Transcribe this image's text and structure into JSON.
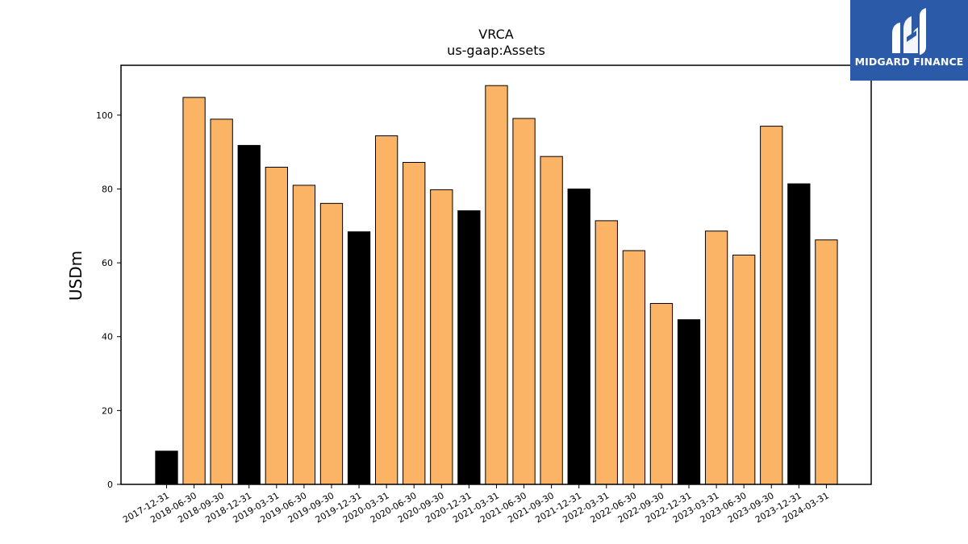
{
  "brand": {
    "name": "MIDGARD FINANCE",
    "icon": "midgard-logo-mark",
    "background": "#2b5ba8"
  },
  "chart_data": {
    "type": "bar",
    "title": "VRCA",
    "subtitle": "us-gaap:Assets",
    "xlabel": "",
    "ylabel": "USDm",
    "ylim": [
      0,
      113.5
    ],
    "yticks": [
      0,
      20,
      40,
      60,
      80,
      100
    ],
    "grid": false,
    "categories": [
      "2017-12-31",
      "2018-06-30",
      "2018-09-30",
      "2018-12-31",
      "2019-03-31",
      "2019-06-30",
      "2019-09-30",
      "2019-12-31",
      "2020-03-31",
      "2020-06-30",
      "2020-09-30",
      "2020-12-31",
      "2021-03-31",
      "2021-06-30",
      "2021-09-30",
      "2021-12-31",
      "2022-03-31",
      "2022-06-30",
      "2022-09-30",
      "2022-12-31",
      "2023-03-31",
      "2023-06-30",
      "2023-09-30",
      "2023-12-31",
      "2024-03-31"
    ],
    "values": [
      9.0,
      104.8,
      98.9,
      91.8,
      85.9,
      81.0,
      76.1,
      68.4,
      94.4,
      87.2,
      79.8,
      74.1,
      108.0,
      99.1,
      88.8,
      80.0,
      71.4,
      63.3,
      49.0,
      44.6,
      68.6,
      62.1,
      97.0,
      81.4,
      66.2
    ],
    "colors": {
      "annual": "#000000",
      "quarterly": "#fbb365",
      "edge": "#000000"
    },
    "annual_flags": [
      true,
      false,
      false,
      true,
      false,
      false,
      false,
      true,
      false,
      false,
      false,
      true,
      false,
      false,
      false,
      true,
      false,
      false,
      false,
      true,
      false,
      false,
      false,
      true,
      false
    ]
  }
}
